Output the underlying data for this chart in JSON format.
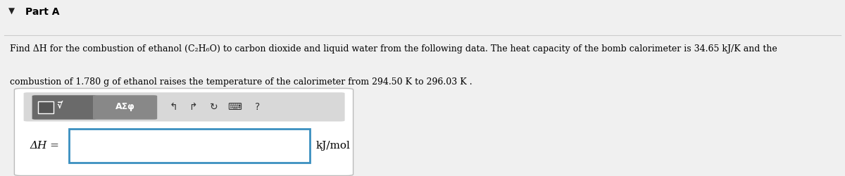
{
  "bg_color": "#f0f0f0",
  "title_arrow": "▼",
  "title_text": "Part A",
  "title_fontsize": 10,
  "body_text_line1": "Find ΔH for the combustion of ethanol (C₂H₆O) to carbon dioxide and liquid water from the following data. The heat capacity of the bomb calorimeter is 34.65 kJ/K and the",
  "body_text_line2": "combustion of 1.780 g of ethanol raises the temperature of the calorimeter from 294.50 K to 296.03 K .",
  "body_fontsize": 9.0,
  "answer_label": "ΔH =",
  "answer_unit": "kJ/mol",
  "answer_fontsize": 11,
  "outer_box_edge": "#bbbbbb",
  "inner_box_edge": "#3a8fc0",
  "toolbar_bg": "#d0d0d0",
  "toolbar_btn_bg": "#777777",
  "toolbar_btn2_bg": "#888888"
}
